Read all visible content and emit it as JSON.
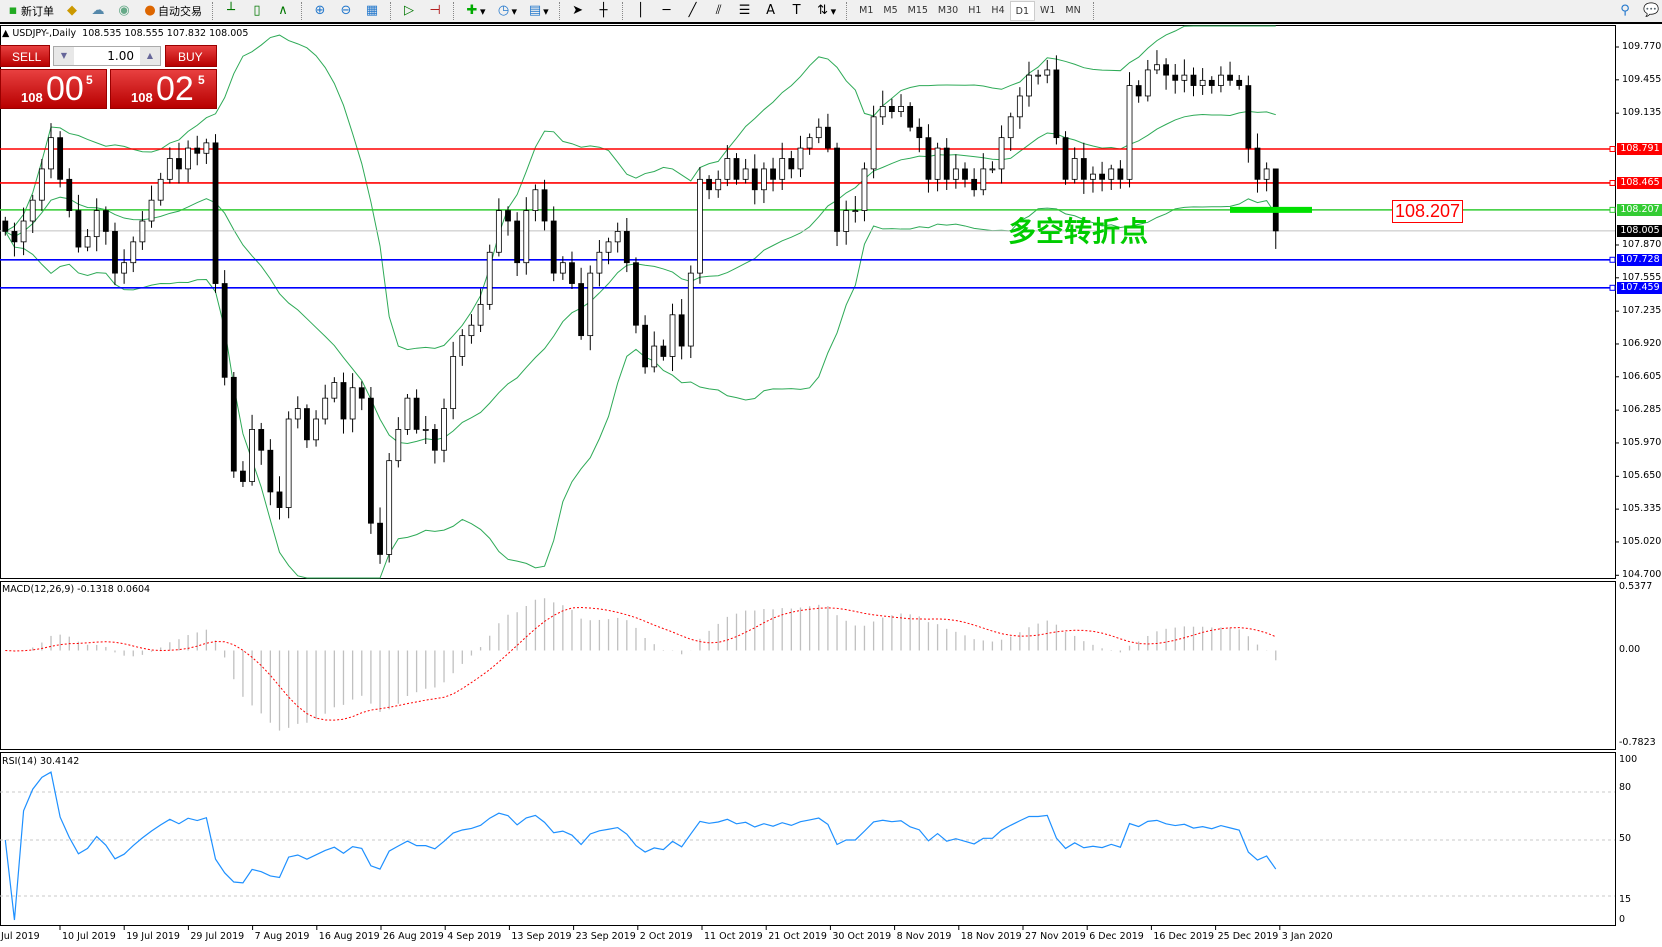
{
  "toolbar": {
    "new_order": "新订单",
    "auto_trading": "自动交易",
    "periods": [
      "M1",
      "M5",
      "M15",
      "M30",
      "H1",
      "H4",
      "D1",
      "W1",
      "MN"
    ],
    "active_period": "D1",
    "icons": [
      "new-order-icon",
      "market-watch-icon",
      "navigator-icon",
      "signals-icon",
      "auto-trading-icon",
      "bar-chart-icon",
      "candlestick-icon",
      "line-chart-icon",
      "zoom-in-icon",
      "zoom-out-icon",
      "tile-windows-icon",
      "autoscroll-icon",
      "chart-shift-icon",
      "indicators-icon",
      "periods-icon",
      "templates-icon",
      "cursor-icon",
      "crosshair-icon",
      "vertical-line-icon",
      "horizontal-line-icon",
      "trendline-icon",
      "fibonacci-icon",
      "equidistant-channel-icon",
      "text-icon",
      "text-label-icon",
      "arrows-icon",
      "search-icon",
      "chat-icon"
    ]
  },
  "header": {
    "symbol": "USDJPY-,Daily",
    "ohlc": "108.535 108.555 107.832 108.005"
  },
  "trade_panel": {
    "sell_label": "SELL",
    "buy_label": "BUY",
    "volume": "1.00",
    "sell_big": "108",
    "sell_pips": "00",
    "sell_frac": "5",
    "buy_big": "108",
    "buy_pips": "02",
    "buy_frac": "5"
  },
  "levels": [
    {
      "price": 108.791,
      "label": "108.791",
      "color": "#ff0000"
    },
    {
      "price": 108.465,
      "label": "108.465",
      "color": "#ff0000"
    },
    {
      "price": 108.207,
      "label": "108.207",
      "color": "#33cc33"
    },
    {
      "price": 108.005,
      "label": "108.005",
      "color": "#000000"
    },
    {
      "price": 107.728,
      "label": "107.728",
      "color": "#0000ff"
    },
    {
      "price": 107.459,
      "label": "107.459",
      "color": "#0000ff"
    }
  ],
  "annotation": {
    "text": "多空转折点",
    "price_box": "108.207",
    "color": "#00cc00"
  },
  "price_axis": [
    "109.770",
    "109.455",
    "109.135",
    "107.870",
    "107.555",
    "107.235",
    "106.920",
    "106.605",
    "106.285",
    "105.970",
    "105.650",
    "105.335",
    "105.020",
    "104.700"
  ],
  "macd": {
    "title": "MACD(12,26,9) -0.1318 0.0604",
    "axis": [
      "0.5377",
      "0.00",
      "-0.7823"
    ]
  },
  "rsi": {
    "title": "RSI(14) 30.4142",
    "axis": [
      "100",
      "80",
      "50",
      "15",
      "0"
    ]
  },
  "chart_data": {
    "type": "candlestick",
    "symbol": "USDJPY",
    "timeframe": "Daily",
    "ylim": [
      104.7,
      109.9
    ],
    "date_labels": [
      "Jul 2019",
      "10 Jul 2019",
      "19 Jul 2019",
      "29 Jul 2019",
      "7 Aug 2019",
      "16 Aug 2019",
      "26 Aug 2019",
      "4 Sep 2019",
      "13 Sep 2019",
      "23 Sep 2019",
      "2 Oct 2019",
      "11 Oct 2019",
      "21 Oct 2019",
      "30 Oct 2019",
      "8 Nov 2019",
      "18 Nov 2019",
      "27 Nov 2019",
      "6 Dec 2019",
      "16 Dec 2019",
      "25 Dec 2019",
      "3 Jan 2020"
    ],
    "close": [
      108.0,
      107.9,
      108.1,
      108.3,
      108.6,
      108.9,
      108.5,
      108.2,
      107.85,
      107.95,
      108.2,
      108.0,
      107.6,
      107.7,
      107.9,
      108.1,
      108.3,
      108.5,
      108.7,
      108.6,
      108.8,
      108.75,
      108.85,
      107.5,
      106.6,
      105.7,
      105.6,
      106.1,
      105.9,
      105.5,
      105.35,
      106.2,
      106.3,
      106.0,
      106.2,
      106.4,
      106.55,
      106.2,
      106.5,
      106.4,
      105.2,
      104.9,
      105.8,
      106.1,
      106.4,
      106.1,
      106.1,
      105.9,
      106.3,
      106.8,
      107.0,
      107.1,
      107.3,
      107.8,
      108.2,
      108.1,
      107.7,
      108.2,
      108.4,
      108.1,
      107.6,
      107.7,
      107.5,
      107.0,
      107.6,
      107.8,
      107.9,
      108.0,
      107.7,
      107.1,
      106.7,
      106.9,
      106.8,
      107.2,
      106.9,
      107.6,
      108.5,
      108.4,
      108.5,
      108.7,
      108.5,
      108.6,
      108.4,
      108.6,
      108.5,
      108.7,
      108.6,
      108.8,
      108.9,
      109.0,
      108.8,
      108.0,
      108.2,
      108.2,
      108.6,
      109.1,
      109.2,
      109.15,
      109.2,
      109.0,
      108.9,
      108.5,
      108.8,
      108.5,
      108.6,
      108.5,
      108.4,
      108.6,
      108.6,
      108.9,
      109.1,
      109.3,
      109.5,
      109.5,
      109.55,
      108.9,
      108.5,
      108.7,
      108.5,
      108.55,
      108.5,
      108.6,
      108.5,
      109.4,
      109.3,
      109.55,
      109.6,
      109.5,
      109.45,
      109.5,
      109.4,
      109.45,
      109.4,
      109.5,
      109.45,
      109.4,
      108.8,
      108.5,
      108.6,
      108.005
    ],
    "last_ohlc": {
      "open": 108.535,
      "high": 108.555,
      "low": 107.832,
      "close": 108.005
    },
    "indicators": [
      "Bollinger Bands",
      "MACD(12,26,9)",
      "RSI(14)"
    ]
  }
}
